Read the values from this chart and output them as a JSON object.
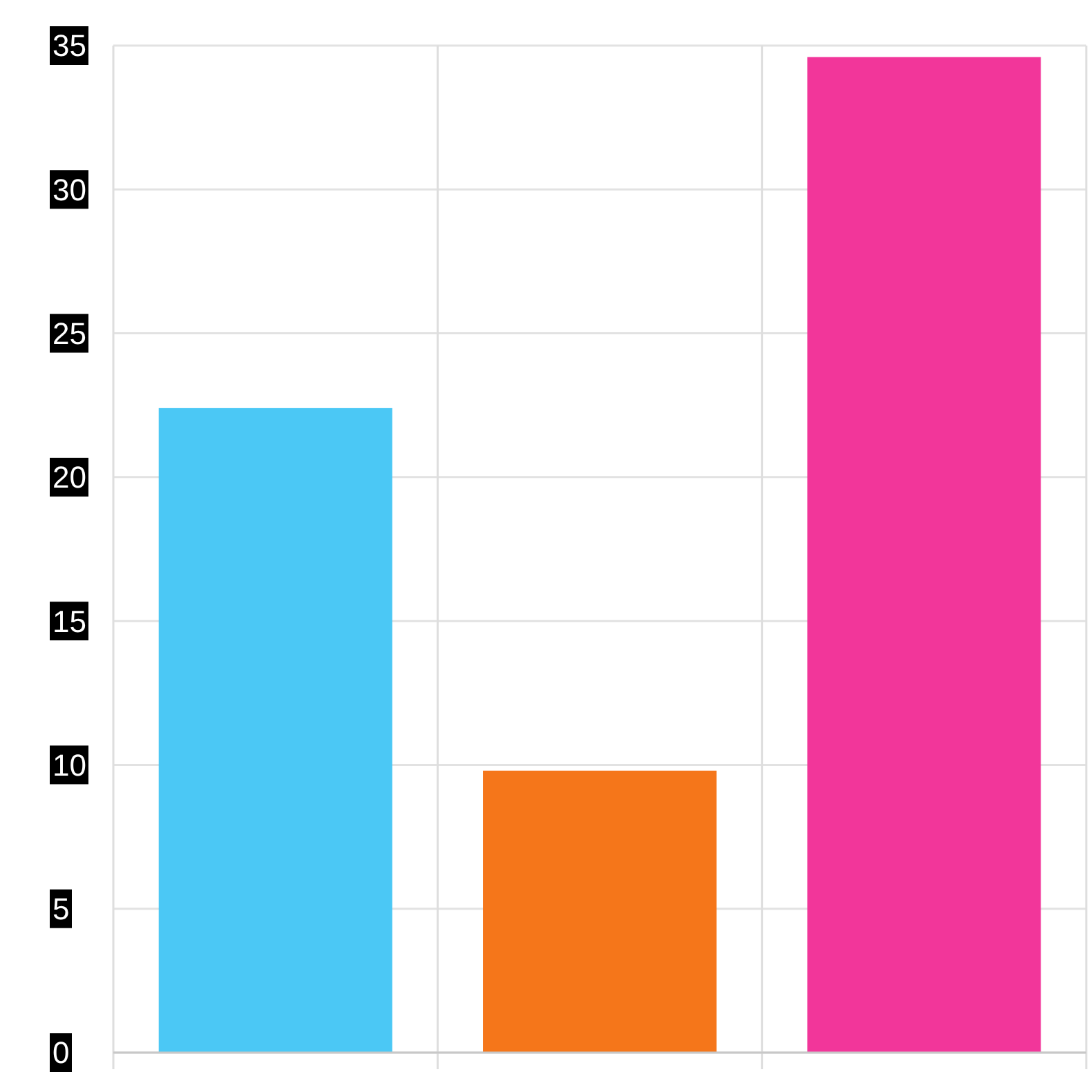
{
  "chart_data": {
    "type": "bar",
    "categories": [
      null,
      null,
      null
    ],
    "colors": [
      "#4bc8f5",
      "#f5761a",
      "#f2369a"
    ],
    "values": [
      22.4,
      9.8,
      34.6
    ],
    "ylim": [
      0,
      35
    ],
    "yticks": [
      0,
      5,
      10,
      15,
      20,
      25,
      30,
      35
    ],
    "grid": true
  }
}
